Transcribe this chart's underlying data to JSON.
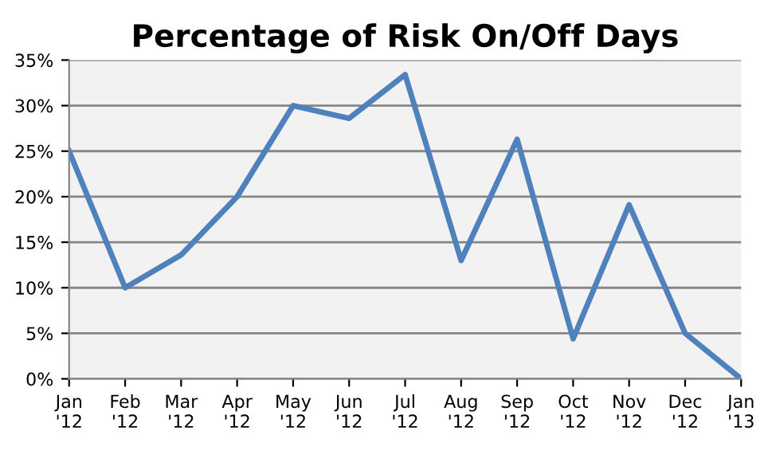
{
  "chart_data": {
    "type": "line",
    "title": "Percentage of Risk On/Off Days",
    "categories": [
      "Jan\n'12",
      "Feb\n'12",
      "Mar\n'12",
      "Apr\n'12",
      "May\n'12",
      "Jun\n'12",
      "Jul\n'12",
      "Aug\n'12",
      "Sep\n'12",
      "Oct\n'12",
      "Nov\n'12",
      "Dec\n'12",
      "Jan\n'13"
    ],
    "series": [
      {
        "color": "#4f81bd",
        "values": [
          25,
          10,
          13.6,
          20,
          30,
          28.6,
          33.4,
          13,
          26.3,
          4.4,
          19.1,
          5,
          0
        ]
      }
    ],
    "ylim": [
      0,
      35
    ],
    "yticks": [
      {
        "value": 0,
        "label": "0%"
      },
      {
        "value": 5,
        "label": "5%"
      },
      {
        "value": 10,
        "label": "10%"
      },
      {
        "value": 15,
        "label": "15%"
      },
      {
        "value": 20,
        "label": "20%"
      },
      {
        "value": 25,
        "label": "25%"
      },
      {
        "value": 30,
        "label": "30%"
      },
      {
        "value": 35,
        "label": "35%"
      }
    ],
    "grid": "y",
    "legend": false,
    "marker": "none",
    "line_style": "solid"
  }
}
